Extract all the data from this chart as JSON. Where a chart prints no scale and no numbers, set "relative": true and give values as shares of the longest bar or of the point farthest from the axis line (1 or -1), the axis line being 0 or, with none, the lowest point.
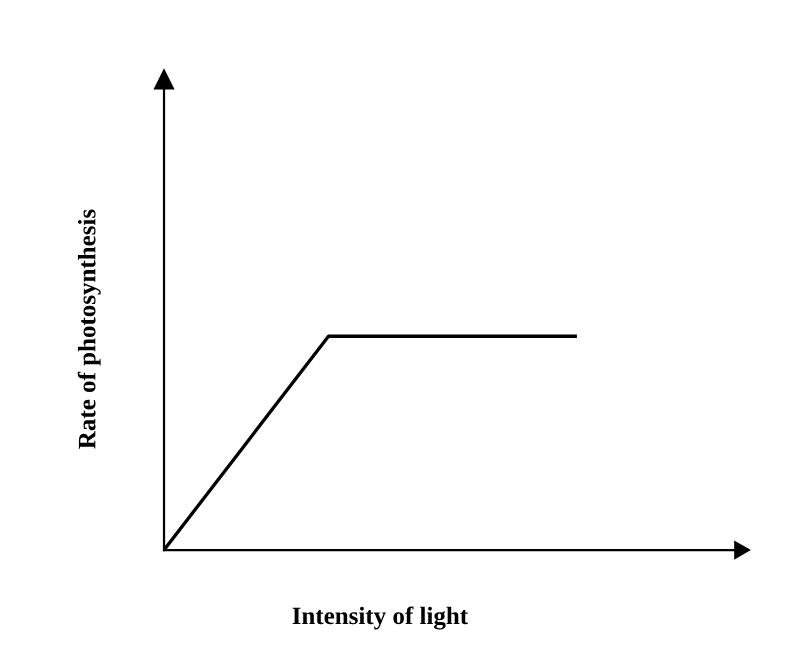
{
  "chart_data": {
    "type": "line",
    "relative": true,
    "xlabel": "Intensity of light",
    "ylabel": "Rate of photosynthesis",
    "categories": [
      null,
      null,
      null,
      null,
      null,
      null
    ],
    "series": [
      {
        "color": "#000000",
        "values": [
          0,
          0.5,
          1,
          1,
          1,
          1
        ]
      }
    ]
  }
}
